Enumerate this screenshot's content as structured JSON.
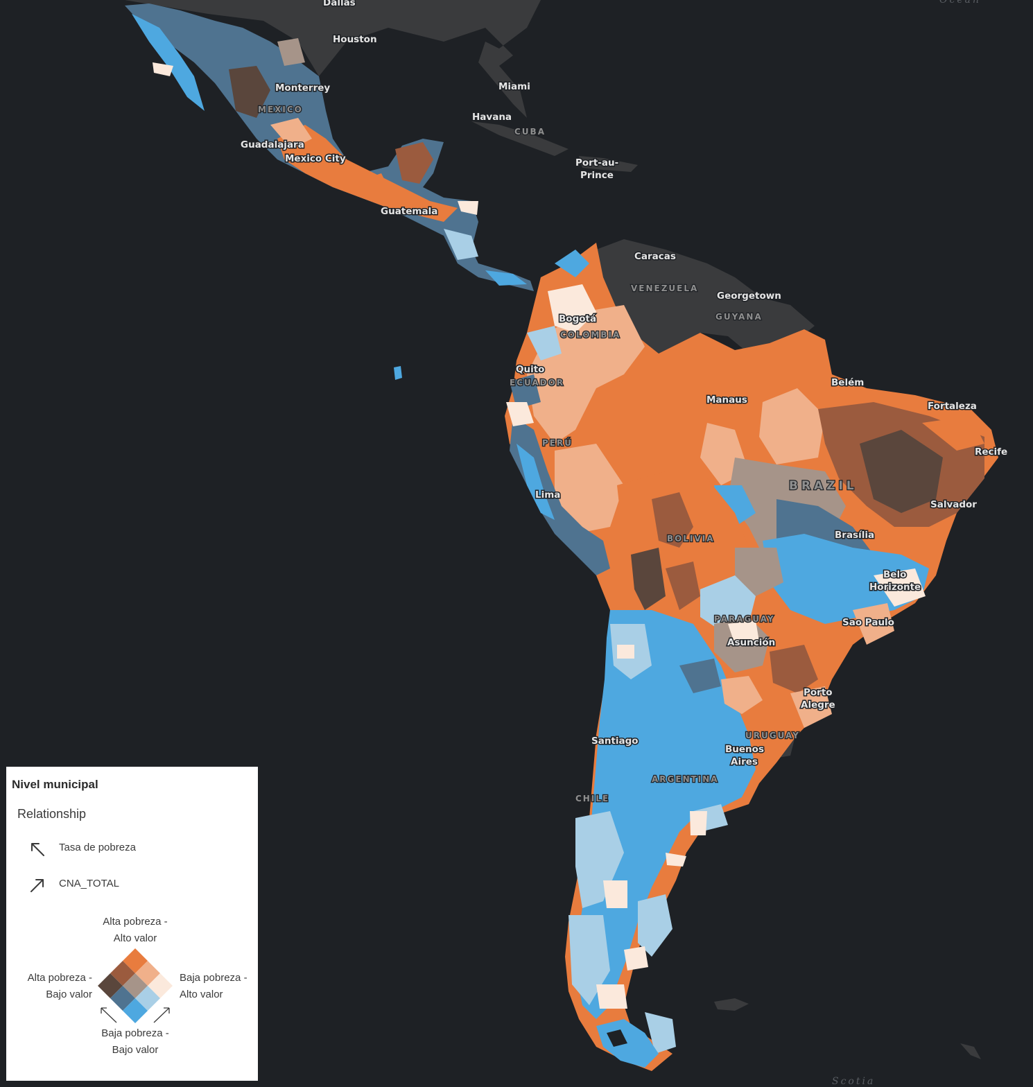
{
  "map": {
    "cities": [
      {
        "name": "Dallas"
      },
      {
        "name": "Houston"
      },
      {
        "name": "Miami"
      },
      {
        "name": "Havana"
      },
      {
        "name": "Monterrey"
      },
      {
        "name": "Guadalajara"
      },
      {
        "name": "Mexico City"
      },
      {
        "name": "Port-au-"
      },
      {
        "name": "Prince"
      },
      {
        "name": "Guatemala"
      },
      {
        "name": "Caracas"
      },
      {
        "name": "Georgetown"
      },
      {
        "name": "Bogotá"
      },
      {
        "name": "Quito"
      },
      {
        "name": "Belém"
      },
      {
        "name": "Manaus"
      },
      {
        "name": "Fortaleza"
      },
      {
        "name": "Recife"
      },
      {
        "name": "Lima"
      },
      {
        "name": "Salvador"
      },
      {
        "name": "Brasília"
      },
      {
        "name": "Belo"
      },
      {
        "name": "Horizonte"
      },
      {
        "name": "Sao Paulo"
      },
      {
        "name": "Asunción"
      },
      {
        "name": "Porto"
      },
      {
        "name": "Alegre"
      },
      {
        "name": "Santiago"
      },
      {
        "name": "Buenos"
      },
      {
        "name": "Aires"
      }
    ],
    "countries": [
      {
        "name": "MEXICO"
      },
      {
        "name": "CUBA"
      },
      {
        "name": "VENEZUELA"
      },
      {
        "name": "GUYANA"
      },
      {
        "name": "COLOMBIA"
      },
      {
        "name": "ECUADOR"
      },
      {
        "name": "PERÚ"
      },
      {
        "name": "BRAZIL"
      },
      {
        "name": "BOLIVIA"
      },
      {
        "name": "PARAGUAY"
      },
      {
        "name": "URUGUAY"
      },
      {
        "name": "ARGENTINA"
      },
      {
        "name": "CHILE"
      }
    ],
    "ocean_labels": [
      {
        "name": "Ocean"
      },
      {
        "name": "Scotia"
      }
    ],
    "colors": {
      "background": "#1e2125",
      "land_other": "#3a3b3d",
      "high_poverty_high_value": "#e87c3e",
      "mid_high_value": "#f0b08a",
      "low_poverty_high_value": "#fbe9dc",
      "high_poverty_mid": "#9b5b3e",
      "mid_mid": "#a69489",
      "low_poverty_mid": "#a9cfe6",
      "high_poverty_low_value": "#5a463c",
      "mid_low_value": "#4f7390",
      "low_poverty_low_value": "#4ea8e0"
    }
  },
  "legend": {
    "title": "Nivel municipal",
    "subtitle": "Relationship",
    "field1_icon": "arrow-up-left-icon",
    "field1_label": "Tasa de pobreza",
    "field2_icon": "arrow-up-right-icon",
    "field2_label": "CNA_TOTAL",
    "top_line1": "Alta pobreza -",
    "top_line2": "Alto valor",
    "left_line1": "Alta pobreza -",
    "left_line2": "Bajo valor",
    "right_line1": "Baja pobreza -",
    "right_line2": "Alto valor",
    "bottom_line1": "Baja pobreza -",
    "bottom_line2": "Bajo valor"
  }
}
